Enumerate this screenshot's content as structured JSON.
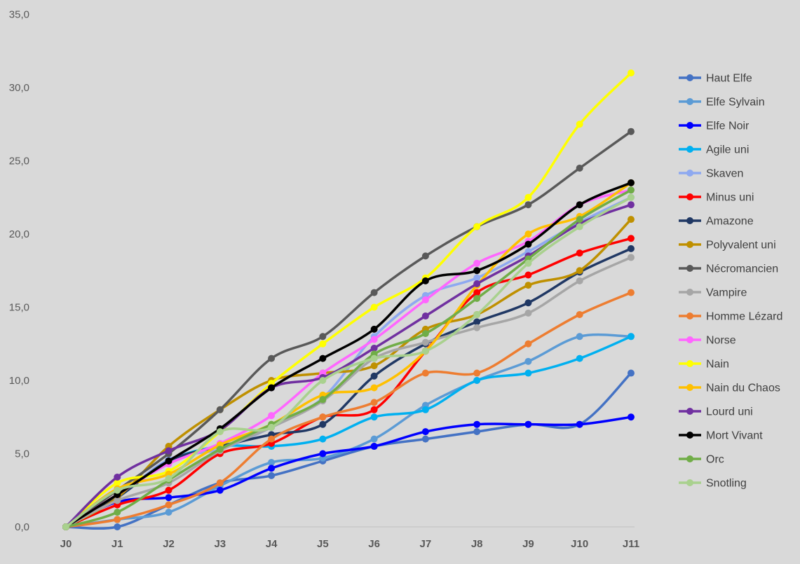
{
  "chart_data": {
    "type": "line",
    "title": "",
    "xlabel": "",
    "ylabel": "",
    "x": [
      "J0",
      "J1",
      "J2",
      "J3",
      "J4",
      "J5",
      "J6",
      "J7",
      "J8",
      "J9",
      "J10",
      "J11"
    ],
    "ylim": [
      0,
      35
    ],
    "yticks": [
      "0,0",
      "5,0",
      "10,0",
      "15,0",
      "20,0",
      "25,0",
      "30,0",
      "35,0"
    ],
    "grid": false,
    "legend_position": "right",
    "background": "#d9d9d9",
    "series": [
      {
        "name": "Haut Elfe",
        "color": "#4472c4",
        "values": [
          0,
          0,
          1.5,
          3.0,
          3.5,
          4.5,
          5.5,
          6.0,
          6.5,
          7.0,
          7.0,
          10.5
        ]
      },
      {
        "name": "Elfe Sylvain",
        "color": "#5b9bd5",
        "values": [
          0,
          0.5,
          1.0,
          2.8,
          4.4,
          4.7,
          6.0,
          8.3,
          10.0,
          11.3,
          13.0,
          13.0
        ]
      },
      {
        "name": "Elfe Noir",
        "color": "#0000ff",
        "values": [
          0,
          1.7,
          2.0,
          2.5,
          4.0,
          5.0,
          5.5,
          6.5,
          7.0,
          7.0,
          7.0,
          7.5
        ]
      },
      {
        "name": "Agile uni",
        "color": "#00b0f0",
        "values": [
          0,
          2.0,
          4.5,
          5.5,
          5.5,
          6.0,
          7.5,
          8.0,
          10.0,
          10.5,
          11.5,
          13.0
        ]
      },
      {
        "name": "Skaven",
        "color": "#8ea9f0",
        "values": [
          0,
          2.0,
          4.6,
          5.3,
          6.8,
          8.8,
          13.0,
          15.8,
          17.0,
          18.8,
          20.8,
          22.5
        ]
      },
      {
        "name": "Minus uni",
        "color": "#ff0000",
        "values": [
          0,
          1.5,
          2.5,
          5.0,
          5.7,
          7.5,
          8.0,
          12.0,
          16.0,
          17.2,
          18.7,
          19.7
        ]
      },
      {
        "name": "Amazone",
        "color": "#203864",
        "values": [
          0,
          2.0,
          4.5,
          5.5,
          6.3,
          7.0,
          10.3,
          12.5,
          14.0,
          15.3,
          17.4,
          19.0
        ]
      },
      {
        "name": "Polyvalent uni",
        "color": "#bf9000",
        "values": [
          0,
          2.0,
          5.5,
          8.0,
          10.0,
          10.5,
          11.0,
          13.5,
          14.5,
          16.5,
          17.5,
          21.0
        ]
      },
      {
        "name": "Nécromancien",
        "color": "#595959",
        "values": [
          0,
          2.5,
          5.0,
          8.0,
          11.5,
          13.0,
          16.0,
          18.5,
          20.5,
          22.0,
          24.5,
          27.0
        ]
      },
      {
        "name": "Vampire",
        "color": "#a6a6a6",
        "values": [
          0,
          1.8,
          3.0,
          5.2,
          6.8,
          8.6,
          11.5,
          12.6,
          13.6,
          14.6,
          16.8,
          18.4
        ]
      },
      {
        "name": "Homme Lézard",
        "color": "#ed7d31",
        "values": [
          0,
          0.5,
          1.5,
          3.0,
          6.0,
          7.5,
          8.5,
          10.5,
          10.5,
          12.5,
          14.5,
          16.0
        ]
      },
      {
        "name": "Norse",
        "color": "#ff66ff",
        "values": [
          0,
          2.2,
          4.3,
          5.7,
          7.6,
          10.5,
          12.8,
          15.5,
          18.0,
          19.5,
          22.0,
          23.0
        ]
      },
      {
        "name": "Nain",
        "color": "#ffff00",
        "values": [
          0,
          3.0,
          3.8,
          6.5,
          9.8,
          12.5,
          15.0,
          17.0,
          20.5,
          22.5,
          27.5,
          31.0
        ]
      },
      {
        "name": "Nain du Chaos",
        "color": "#ffc000",
        "values": [
          0,
          2.6,
          3.6,
          5.6,
          7.0,
          9.0,
          9.5,
          12.0,
          16.5,
          20.0,
          21.2,
          23.5
        ]
      },
      {
        "name": "Lourd uni",
        "color": "#7030a0",
        "values": [
          0,
          3.4,
          5.2,
          6.6,
          9.5,
          10.2,
          12.2,
          14.4,
          16.6,
          18.5,
          20.7,
          22.0
        ]
      },
      {
        "name": "Mort Vivant",
        "color": "#000000",
        "values": [
          0,
          2.2,
          4.5,
          6.7,
          9.5,
          11.5,
          13.5,
          16.8,
          17.5,
          19.3,
          22.0,
          23.5
        ]
      },
      {
        "name": "Orc",
        "color": "#70ad47",
        "values": [
          0,
          1.0,
          3.2,
          5.3,
          7.0,
          8.7,
          11.8,
          13.2,
          15.6,
          18.3,
          21.0,
          23.0
        ]
      },
      {
        "name": "Snotling",
        "color": "#a9d18e",
        "values": [
          0,
          2.5,
          3.3,
          6.5,
          6.8,
          10.0,
          11.5,
          12.0,
          14.5,
          18.0,
          20.5,
          22.5
        ]
      }
    ]
  }
}
